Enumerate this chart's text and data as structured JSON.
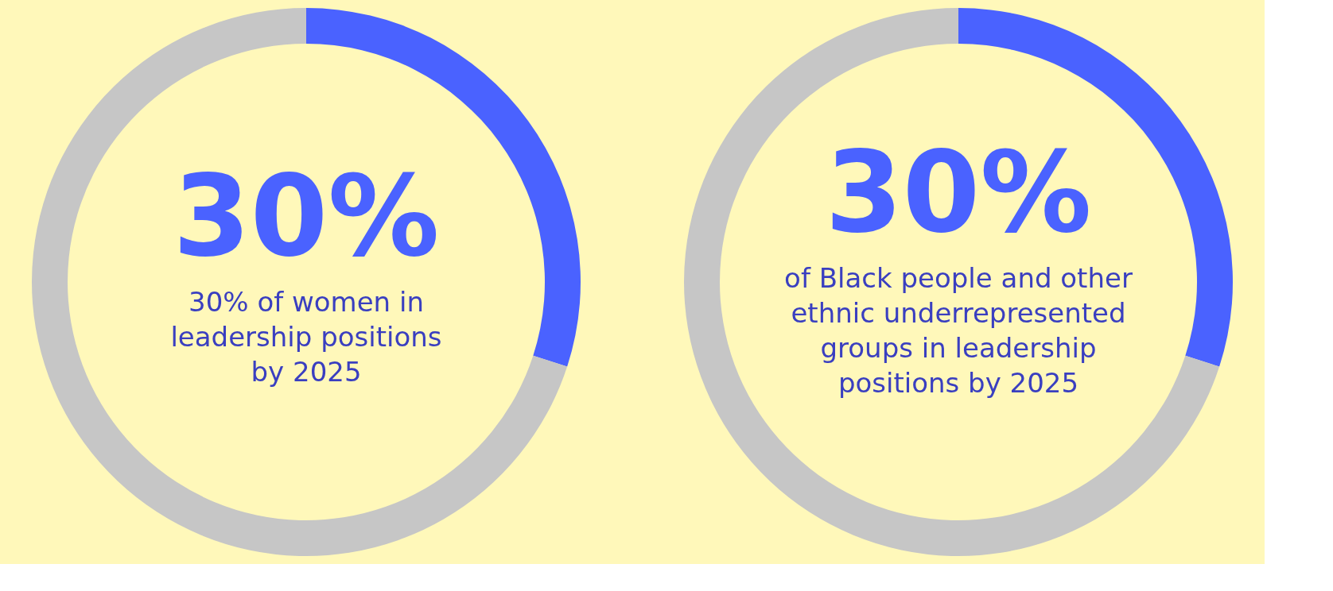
{
  "chart_data": [
    {
      "type": "donut",
      "categories": [
        null,
        null
      ],
      "values": [
        30,
        70
      ],
      "colors": [
        "#4a62ff",
        "#c6c6c6"
      ],
      "value_labels": [
        "30%",
        null
      ],
      "legend": false,
      "annotations": [
        "30% of women in leadership positions by 2025"
      ]
    },
    {
      "type": "donut",
      "categories": [
        null,
        null
      ],
      "values": [
        30,
        70
      ],
      "colors": [
        "#4a62ff",
        "#c6c6c6"
      ],
      "value_labels": [
        "30%",
        null
      ],
      "legend": false,
      "annotations": [
        "of Black people and other ethnic underrepresented groups in leadership positions by 2025"
      ]
    }
  ]
}
